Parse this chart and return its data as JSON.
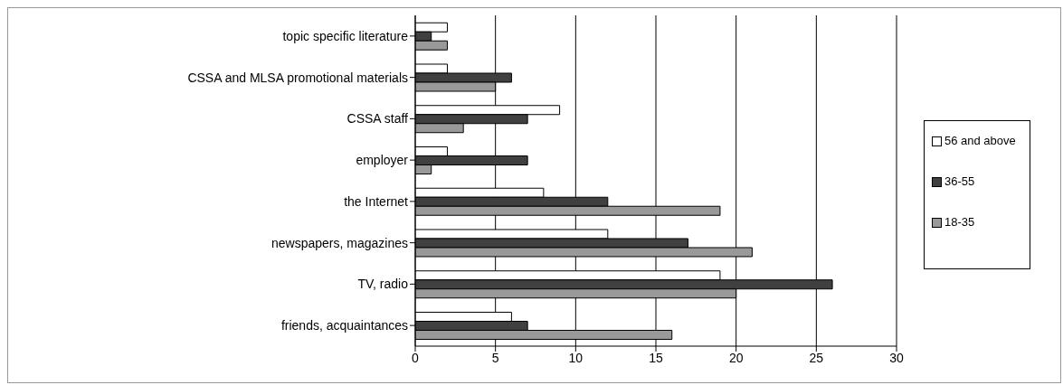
{
  "chart_data": {
    "type": "bar",
    "orientation": "horizontal",
    "categories": [
      "topic specific literature",
      "CSSA and MLSA promotional materials",
      "CSSA staff",
      "employer",
      "the Internet",
      "newspapers, magazines",
      "TV, radio",
      "friends, acquaintances"
    ],
    "series": [
      {
        "name": "56 and above",
        "color": "#ffffff",
        "values": [
          2,
          2,
          9,
          2,
          8,
          12,
          19,
          6
        ]
      },
      {
        "name": "36-55",
        "color": "#404040",
        "values": [
          1,
          6,
          7,
          7,
          12,
          17,
          26,
          7
        ]
      },
      {
        "name": "18-35",
        "color": "#999999",
        "values": [
          2,
          5,
          3,
          1,
          19,
          21,
          20,
          16
        ]
      }
    ],
    "xlim": [
      0,
      30
    ],
    "xticks": [
      0,
      5,
      10,
      15,
      20,
      25,
      30
    ],
    "grid": "x",
    "legend": "right"
  }
}
